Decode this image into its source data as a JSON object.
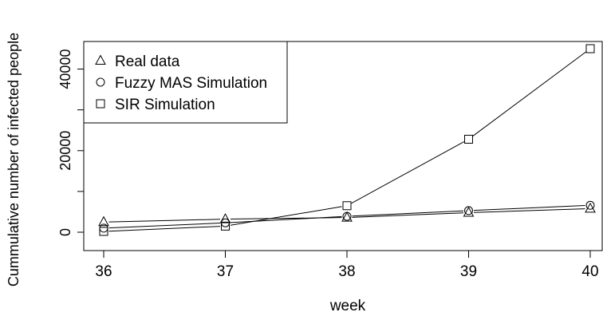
{
  "chart_data": {
    "type": "line",
    "title": "",
    "xlabel": "week",
    "ylabel": "Cummulative number of infected people",
    "x": [
      36,
      37,
      38,
      39,
      40
    ],
    "xticks": [
      "36",
      "37",
      "38",
      "39",
      "40"
    ],
    "yticks": [
      "0",
      "20000",
      "40000"
    ],
    "xlim": [
      36,
      40
    ],
    "ylim": [
      0,
      45000
    ],
    "grid": false,
    "legend_position": "top-left",
    "series": [
      {
        "name": "Real data",
        "marker": "triangle",
        "values": [
          2500,
          3200,
          3600,
          4800,
          5800
        ]
      },
      {
        "name": "Fuzzy MAS Simulation",
        "marker": "circle",
        "values": [
          1000,
          2300,
          3900,
          5300,
          6600
        ]
      },
      {
        "name": "SIR Simulation",
        "marker": "square",
        "values": [
          200,
          1500,
          6500,
          22800,
          45000
        ]
      }
    ],
    "colors": {
      "line": "#000000",
      "background": "#ffffff"
    }
  }
}
